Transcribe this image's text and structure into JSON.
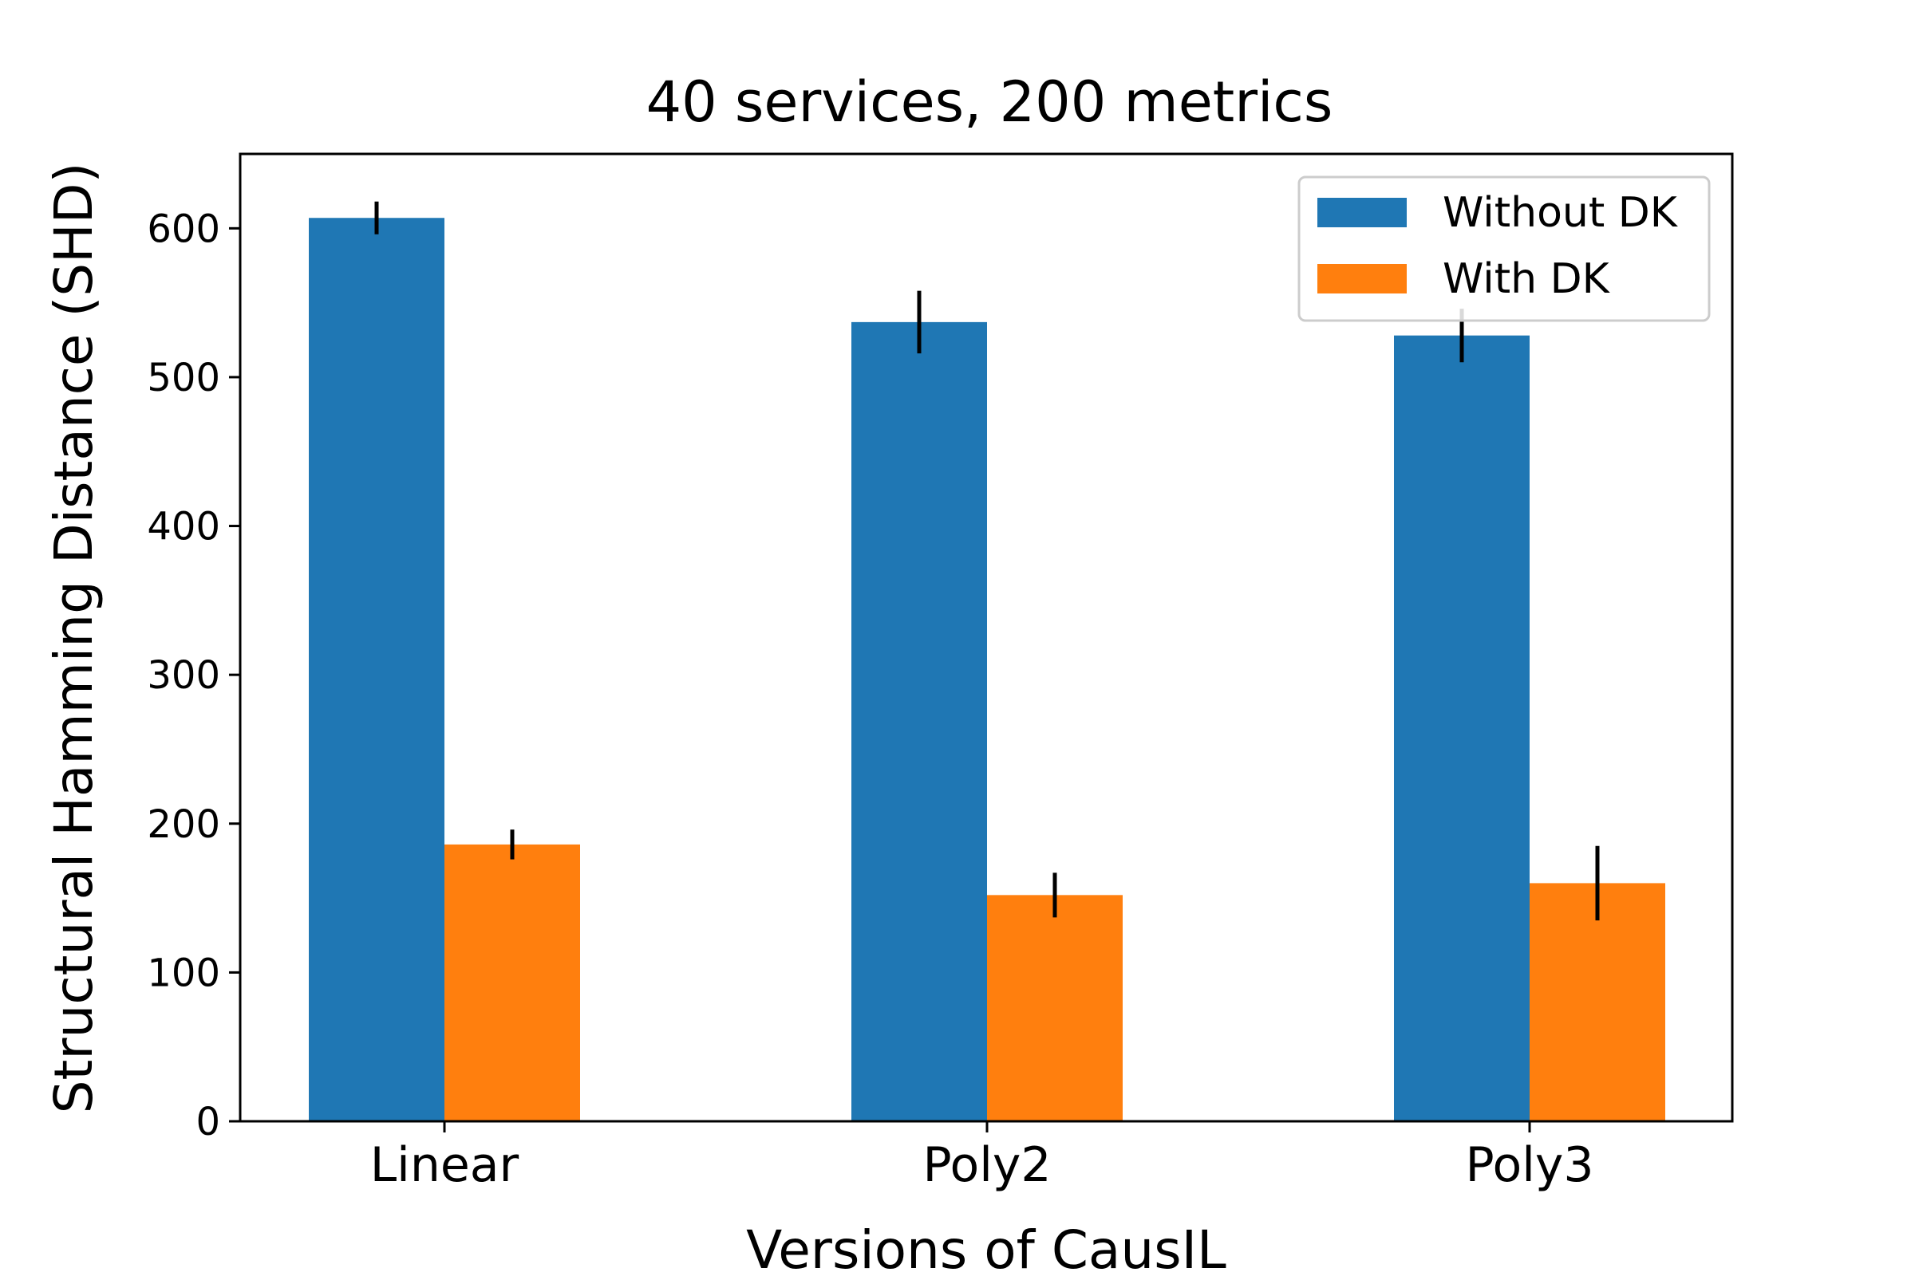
{
  "chart_data": {
    "type": "bar",
    "title": "40 services, 200 metrics",
    "xlabel": "Versions of CausIL",
    "ylabel": "Structural Hamming Distance (SHD)",
    "categories": [
      "Linear",
      "Poly2",
      "Poly3"
    ],
    "series": [
      {
        "name": "Without DK",
        "color": "#1f77b4",
        "values": [
          607,
          537,
          528
        ],
        "errors": [
          11,
          21,
          18
        ]
      },
      {
        "name": "With DK",
        "color": "#ff7f0e",
        "values": [
          186,
          152,
          160
        ],
        "errors": [
          10,
          15,
          25
        ]
      }
    ],
    "ylim": [
      0,
      650
    ],
    "yticks": [
      0,
      100,
      200,
      300,
      400,
      500,
      600
    ],
    "legend_position": "top-right",
    "grid": false
  }
}
